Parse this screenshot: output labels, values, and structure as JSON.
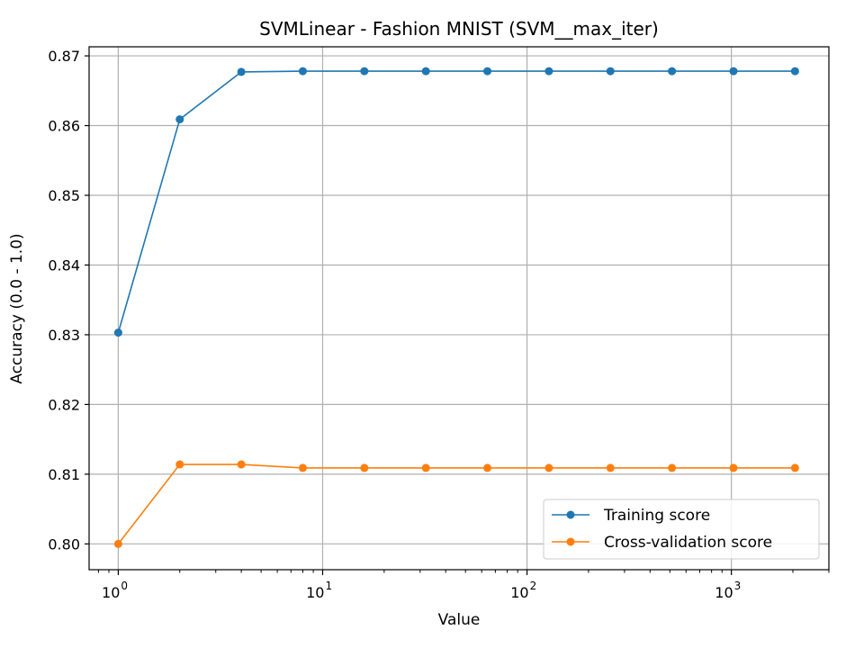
{
  "chart_data": {
    "type": "line",
    "title": "SVMLinear - Fashion MNIST (SVM__max_iter)",
    "xlabel": "Value",
    "ylabel": "Accuracy (0.0 - 1.0)",
    "xscale": "log",
    "xlim": [
      0.72,
      3000
    ],
    "ylim": [
      0.7963,
      0.8713
    ],
    "grid": true,
    "legend_position": "lower-right",
    "x": [
      1,
      2,
      4,
      8,
      16,
      32,
      64,
      128,
      256,
      512,
      1024,
      2048
    ],
    "series": [
      {
        "name": "Training score",
        "color": "#1f77b4",
        "values": [
          0.8303,
          0.8609,
          0.8677,
          0.8678,
          0.8678,
          0.8678,
          0.8678,
          0.8678,
          0.8678,
          0.8678,
          0.8678,
          0.8678
        ]
      },
      {
        "name": "Cross-validation score",
        "color": "#ff7f0e",
        "values": [
          0.8,
          0.8114,
          0.8114,
          0.8109,
          0.8109,
          0.8109,
          0.8109,
          0.8109,
          0.8109,
          0.8109,
          0.8109,
          0.8109
        ]
      }
    ],
    "x_ticks": [
      {
        "value": 1,
        "base": "10",
        "exp": "0"
      },
      {
        "value": 10,
        "base": "10",
        "exp": "1"
      },
      {
        "value": 100,
        "base": "10",
        "exp": "2"
      },
      {
        "value": 1000,
        "base": "10",
        "exp": "3"
      }
    ],
    "y_ticks": [
      {
        "value": 0.8,
        "label": "0.80"
      },
      {
        "value": 0.81,
        "label": "0.81"
      },
      {
        "value": 0.82,
        "label": "0.82"
      },
      {
        "value": 0.83,
        "label": "0.83"
      },
      {
        "value": 0.84,
        "label": "0.84"
      },
      {
        "value": 0.85,
        "label": "0.85"
      },
      {
        "value": 0.86,
        "label": "0.86"
      },
      {
        "value": 0.87,
        "label": "0.87"
      }
    ]
  }
}
